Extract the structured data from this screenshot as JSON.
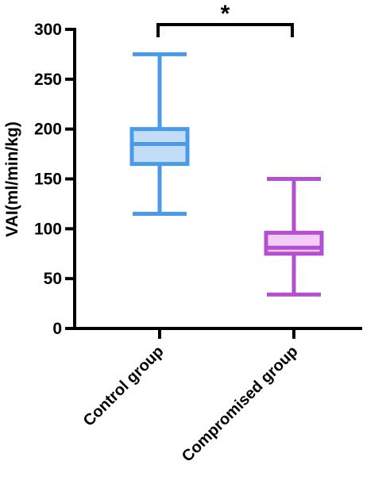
{
  "chart_data": {
    "type": "boxplot",
    "title": "",
    "xlabel": "",
    "ylabel": "VAI(ml/min/kg)",
    "ylim": [
      0,
      300
    ],
    "yticks": [
      "0",
      "50",
      "100",
      "150",
      "200",
      "250",
      "300"
    ],
    "grid": false,
    "categories": [
      "Control group",
      "Compromised group"
    ],
    "boxes": [
      {
        "category": "Control group",
        "min": 115,
        "q1": 165,
        "median": 185,
        "q3": 200,
        "max": 275,
        "color": "#4a9ae8",
        "fill": "#c4ddf6"
      },
      {
        "category": "Compromised group",
        "min": 34,
        "q1": 75,
        "median": 81,
        "q3": 96,
        "max": 150,
        "color": "#b44fd0",
        "fill": "#f3cdf6"
      }
    ],
    "significance": {
      "label": "*",
      "between": [
        "Control group",
        "Compromised group"
      ]
    }
  }
}
